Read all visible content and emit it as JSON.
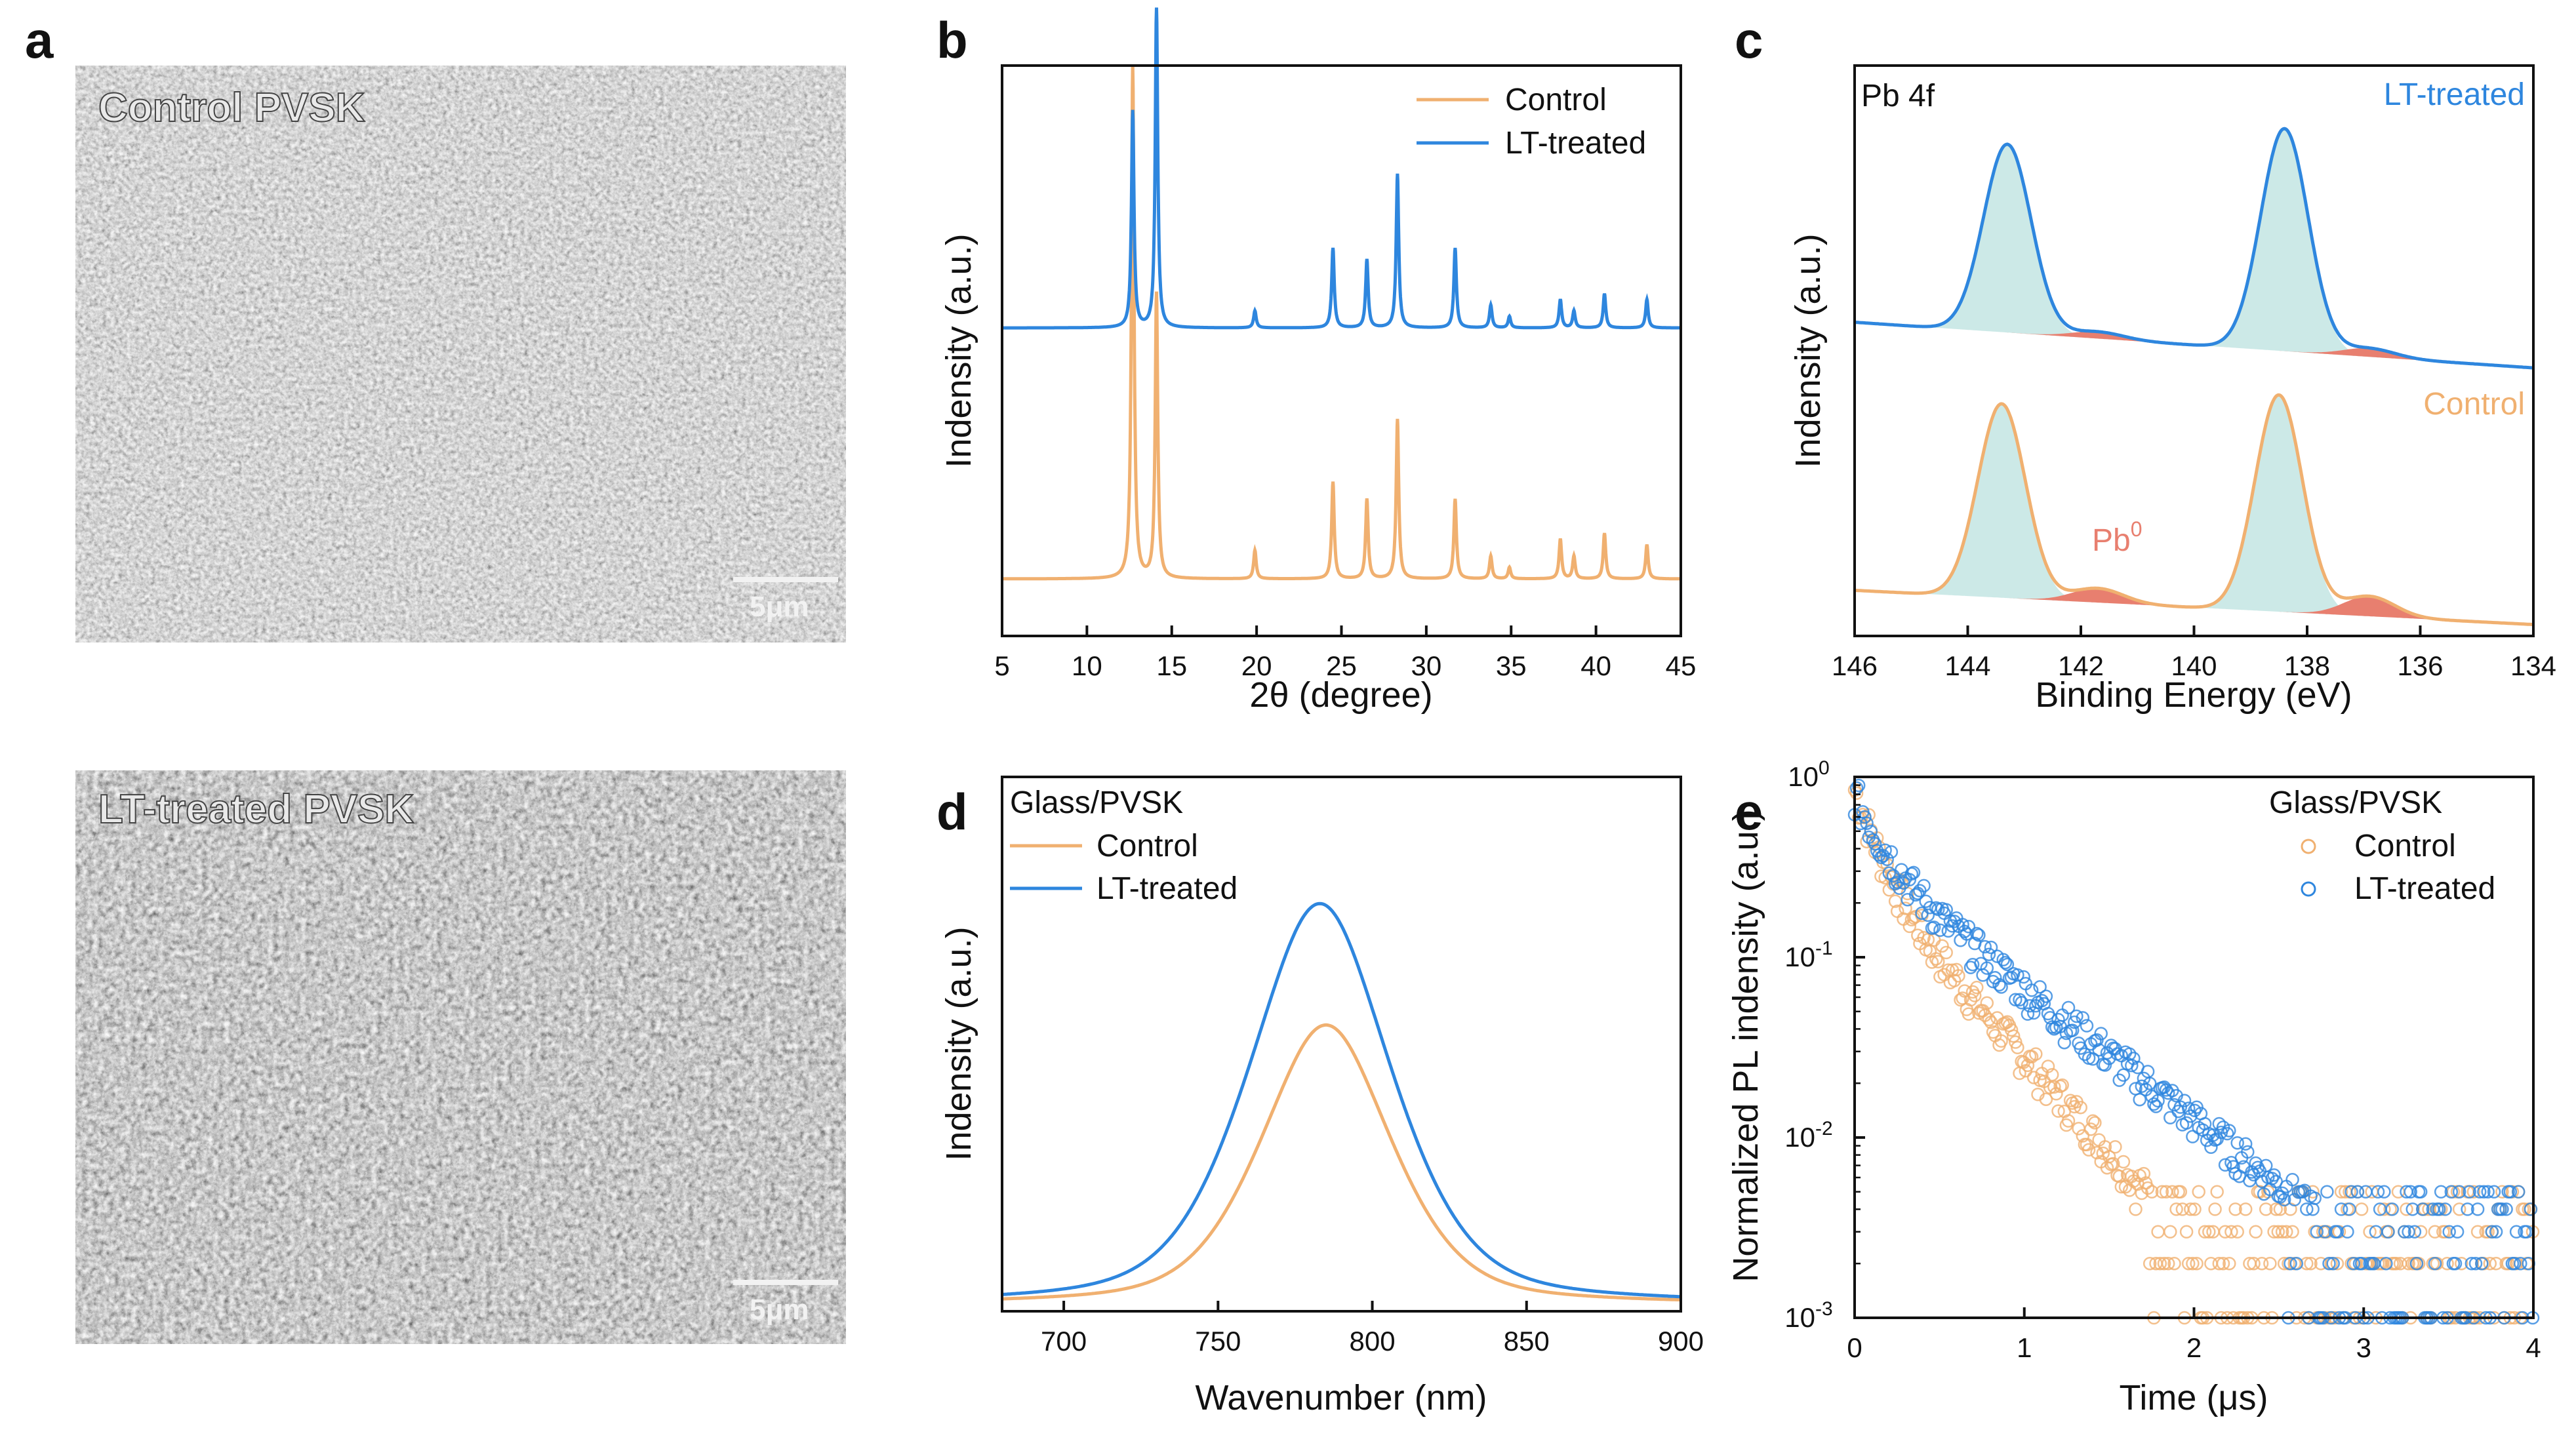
{
  "colors": {
    "control": "#F0B070",
    "treated": "#2E86DE",
    "shade": "#CCE9E7",
    "pb0": "#E87F6F",
    "axis": "#111111"
  },
  "panel_a": {
    "label": "a",
    "images": [
      {
        "title": "Control PVSK",
        "scale_bar": "5μm"
      },
      {
        "title": "LT-treated PVSK",
        "scale_bar": "5μm"
      }
    ]
  },
  "chart_data": [
    {
      "panel": "b",
      "type": "line",
      "xlabel": "2θ (degree)",
      "ylabel": "Indensity (a.u.)",
      "xlim": [
        5,
        45
      ],
      "xticks": [
        5,
        10,
        15,
        20,
        25,
        30,
        35,
        40,
        45
      ],
      "legend": [
        "Control",
        "LT-treated"
      ],
      "series": [
        {
          "name": "Control",
          "baseline": 0.1,
          "peaks": [
            [
              12.7,
              0.9
            ],
            [
              14.1,
              0.5
            ],
            [
              19.9,
              0.05
            ],
            [
              24.5,
              0.17
            ],
            [
              26.5,
              0.14
            ],
            [
              28.3,
              0.28
            ],
            [
              31.7,
              0.14
            ],
            [
              33.8,
              0.04
            ],
            [
              34.9,
              0.02
            ],
            [
              37.9,
              0.07
            ],
            [
              38.7,
              0.04
            ],
            [
              40.5,
              0.08
            ],
            [
              43.0,
              0.06
            ]
          ]
        },
        {
          "name": "LT-treated",
          "baseline": 0.54,
          "peaks": [
            [
              12.7,
              0.38
            ],
            [
              14.1,
              0.56
            ],
            [
              19.9,
              0.03
            ],
            [
              24.5,
              0.14
            ],
            [
              26.5,
              0.12
            ],
            [
              28.3,
              0.27
            ],
            [
              31.7,
              0.14
            ],
            [
              33.8,
              0.04
            ],
            [
              34.9,
              0.02
            ],
            [
              37.9,
              0.05
            ],
            [
              38.7,
              0.03
            ],
            [
              40.5,
              0.06
            ],
            [
              43.0,
              0.05
            ]
          ]
        }
      ]
    },
    {
      "panel": "c",
      "type": "line",
      "xlabel": "Binding Energy (eV)",
      "ylabel": "Indensity (a.u.)",
      "xlim": [
        146,
        134
      ],
      "xticks": [
        146,
        144,
        142,
        140,
        138,
        136,
        134
      ],
      "corner_label": "Pb 4f",
      "annotations": {
        "treated": "LT-treated",
        "control": "Control",
        "pb0_base": "Pb",
        "pb0_sup": "0"
      },
      "series": [
        {
          "name": "LT-treated",
          "base_start": 0.55,
          "base_end": 0.47,
          "peaks": [
            [
              143.3,
              0.33
            ],
            [
              138.4,
              0.39
            ]
          ],
          "pb0": [
            [
              141.7,
              0.012
            ],
            [
              136.9,
              0.015
            ]
          ]
        },
        {
          "name": "Control",
          "base_start": 0.08,
          "base_end": 0.02,
          "peaks": [
            [
              143.4,
              0.34
            ],
            [
              138.5,
              0.38
            ]
          ],
          "pb0": [
            [
              141.7,
              0.025
            ],
            [
              136.9,
              0.035
            ]
          ]
        }
      ]
    },
    {
      "panel": "d",
      "type": "line",
      "xlabel": "Wavenumber (nm)",
      "ylabel": "Indensity (a.u.)",
      "xlim": [
        680,
        900
      ],
      "xticks": [
        700,
        750,
        800,
        850,
        900
      ],
      "legend_title": "Glass/PVSK",
      "legend": [
        "Control",
        "LT-treated"
      ],
      "series": [
        {
          "name": "Control",
          "center": 785,
          "width": 22,
          "amplitude": 0.53
        },
        {
          "name": "LT-treated",
          "center": 783,
          "width": 24,
          "amplitude": 0.76
        }
      ]
    },
    {
      "panel": "e",
      "type": "scatter",
      "xlabel": "Time (μs)",
      "ylabel": "Normalized PL indensity (a.u.)",
      "xlim": [
        0,
        4
      ],
      "ylim": [
        0.001,
        1
      ],
      "yscale": "log",
      "xticks": [
        0,
        1,
        2,
        3,
        4
      ],
      "yticks": [
        {
          "base": "10",
          "exp": "-3"
        },
        {
          "base": "10",
          "exp": "-2"
        },
        {
          "base": "10",
          "exp": "-1"
        },
        {
          "base": "10",
          "exp": "0"
        }
      ],
      "legend_title": "Glass/PVSK",
      "legend": [
        "Control",
        "LT-treated"
      ],
      "series": [
        {
          "name": "Control",
          "a1": 0.55,
          "t1": 0.12,
          "a2": 0.3,
          "t2": 0.42
        },
        {
          "name": "LT-treated",
          "a1": 0.45,
          "t1": 0.15,
          "a2": 0.35,
          "t2": 0.6
        }
      ]
    }
  ]
}
